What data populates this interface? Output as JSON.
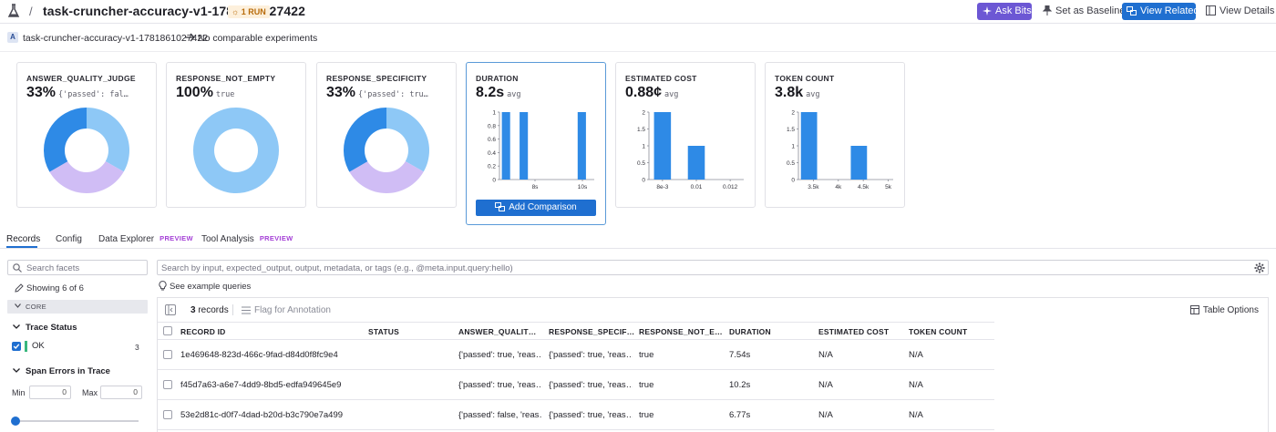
{
  "header": {
    "separator": "/",
    "title": "task-cruncher-accuracy-v1-1781861027422",
    "run_badge": "☼ 1 RUN",
    "ask_bits": "Ask Bits",
    "set_baseline": "Set as Baseline",
    "view_related": "View Related",
    "view_details": "View Details"
  },
  "experiment": {
    "badge": "A",
    "name": "task-cruncher-accuracy-v1-1781861027422",
    "comparison": "No comparable experiments"
  },
  "colors": {
    "accent": "#1f6fd0",
    "purple": "#6c57d4",
    "donut_light": "#8ec8f6",
    "donut_dark": "#2e8ae6",
    "donut_lavender": "#d0bdf5",
    "bar": "#2e8ae6"
  },
  "metrics": [
    {
      "title": "ANSWER_QUALITY_JUDGE",
      "value": "33%",
      "sub": "{'passed': fal…",
      "chart_data": {
        "type": "pie",
        "donut": true,
        "slices": [
          {
            "label": "",
            "value": 33.3,
            "color": "#8ec8f6"
          },
          {
            "label": "",
            "value": 33.3,
            "color": "#d0bdf5"
          },
          {
            "label": "",
            "value": 33.4,
            "color": "#2e8ae6"
          }
        ]
      }
    },
    {
      "title": "RESPONSE_NOT_EMPTY",
      "value": "100%",
      "sub": "true",
      "chart_data": {
        "type": "pie",
        "donut": true,
        "slices": [
          {
            "label": "",
            "value": 100,
            "color": "#8ec8f6"
          }
        ]
      }
    },
    {
      "title": "RESPONSE_SPECIFICITY",
      "value": "33%",
      "sub": "{'passed': tru…",
      "chart_data": {
        "type": "pie",
        "donut": true,
        "slices": [
          {
            "label": "",
            "value": 33.3,
            "color": "#8ec8f6"
          },
          {
            "label": "",
            "value": 33.3,
            "color": "#d0bdf5"
          },
          {
            "label": "",
            "value": 33.4,
            "color": "#2e8ae6"
          }
        ]
      }
    },
    {
      "title": "DURATION",
      "value": "8.2s",
      "sub": "avg",
      "add_comparison": "Add Comparison",
      "chart_data": {
        "type": "bar",
        "x_range": [
          6.5,
          10.5
        ],
        "ylim": [
          0,
          1
        ],
        "yticks": [
          "0",
          "0.2",
          "0.4",
          "0.6",
          "0.8",
          "1"
        ],
        "xticks": [
          {
            "label": "8s",
            "x": 8
          },
          {
            "label": "10s",
            "x": 10
          }
        ],
        "bins": [
          {
            "x0": 6.6,
            "x1": 6.95,
            "value": 1
          },
          {
            "x0": 7.35,
            "x1": 7.7,
            "value": 1
          },
          {
            "x0": 9.8,
            "x1": 10.15,
            "value": 1
          }
        ]
      }
    },
    {
      "title": "ESTIMATED COST",
      "value": "0.88¢",
      "sub": "avg",
      "chart_data": {
        "type": "bar",
        "x_range": [
          0.0072,
          0.0128
        ],
        "ylim": [
          0,
          2
        ],
        "yticks": [
          "0",
          "0.5",
          "1",
          "1.5",
          "2"
        ],
        "xticks": [
          {
            "label": "8e-3",
            "x": 0.008
          },
          {
            "label": "0.01",
            "x": 0.01
          },
          {
            "label": "0.012",
            "x": 0.012
          }
        ],
        "bins": [
          {
            "x0": 0.0075,
            "x1": 0.0085,
            "value": 2
          },
          {
            "x0": 0.0095,
            "x1": 0.0105,
            "value": 1
          }
        ]
      }
    },
    {
      "title": "TOKEN COUNT",
      "value": "3.8k",
      "sub": "avg",
      "chart_data": {
        "type": "bar",
        "x_range": [
          3200,
          5100
        ],
        "ylim": [
          0,
          2
        ],
        "yticks": [
          "0",
          "0.5",
          "1",
          "1.5",
          "2"
        ],
        "xticks": [
          {
            "label": "3.5k",
            "x": 3500
          },
          {
            "label": "4k",
            "x": 4000
          },
          {
            "label": "4.5k",
            "x": 4500
          },
          {
            "label": "5k",
            "x": 5000
          }
        ],
        "bins": [
          {
            "x0": 3250,
            "x1": 3575,
            "value": 2
          },
          {
            "x0": 4250,
            "x1": 4575,
            "value": 1
          }
        ]
      }
    }
  ],
  "tabs": [
    {
      "label": "Records",
      "preview": ""
    },
    {
      "label": "Config",
      "preview": ""
    },
    {
      "label": "Data Explorer",
      "preview": "PREVIEW"
    },
    {
      "label": "Tool Analysis",
      "preview": "PREVIEW"
    }
  ],
  "sidebar": {
    "search_placeholder": "Search facets",
    "showing": "Showing 6 of 6",
    "core": "CORE",
    "trace_status": "Trace Status",
    "ok_label": "OK",
    "ok_count": "3",
    "span_errors": "Span Errors in Trace",
    "min_label": "Min",
    "max_label": "Max",
    "min_value": "0",
    "max_value": "0"
  },
  "main": {
    "search_placeholder": "Search by input, expected_output, output, metadata, or tags (e.g., @meta.input.query:hello)",
    "example_queries": "See example queries",
    "records_count": "3",
    "records_label": "records",
    "flag_annotation": "Flag for Annotation",
    "table_options": "Table Options"
  },
  "table": {
    "columns": [
      "RECORD ID",
      "STATUS",
      "ANSWER_QUALIT…",
      "RESPONSE_SPECIF…",
      "RESPONSE_NOT_E…",
      "DURATION",
      "ESTIMATED COST",
      "TOKEN COUNT"
    ],
    "rows": [
      [
        "1e469648-823d-466c-9fad-d84d0f8fc9e4",
        "",
        "{'passed': true, 'reas…",
        "{'passed': true, 'reas…",
        "true",
        "7.54s",
        "N/A",
        "N/A"
      ],
      [
        "f45d7a63-a6e7-4dd9-8bd5-edfa949645e9",
        "",
        "{'passed': true, 'reas…",
        "{'passed': true, 'reas…",
        "true",
        "10.2s",
        "N/A",
        "N/A"
      ],
      [
        "53e2d81c-d0f7-4dad-b20d-b3c790e7a499",
        "",
        "{'passed': false, 'reas…",
        "{'passed': true, 'reas…",
        "true",
        "6.77s",
        "N/A",
        "N/A"
      ]
    ]
  }
}
